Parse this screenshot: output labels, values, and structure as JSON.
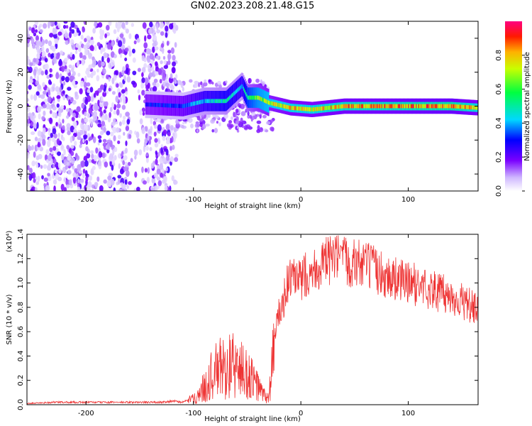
{
  "title": "GN02.2023.208.21.48.G15",
  "colors": {
    "snr_line": "#ee3333",
    "frame": "#000000"
  },
  "chart_data": [
    {
      "type": "heatmap",
      "title": "GN02.2023.208.21.48.G15",
      "xlabel": "Height of straight line (km)",
      "ylabel": "Frequency (Hz)",
      "xlim": [
        -255,
        165
      ],
      "ylim": [
        -50,
        50
      ],
      "xticks": [
        -200,
        -100,
        0,
        100
      ],
      "xtick_labels": [
        "-200",
        "-100",
        "0",
        "100"
      ],
      "yticks": [
        -40,
        -20,
        0,
        20,
        40
      ],
      "ytick_labels": [
        "-40",
        "-20",
        "0",
        "20",
        "40"
      ],
      "colorbar": {
        "label": "Normalized spectral amplitude",
        "range": [
          0,
          1
        ],
        "ticks": [
          0.0,
          0.2,
          0.4,
          0.6,
          0.8
        ],
        "tick_labels": [
          "0.0",
          "0.2",
          "0.4",
          "0.6",
          "0.8"
        ],
        "colormap": "rainbow"
      },
      "trace": [
        {
          "x": -145,
          "freq": 1,
          "amp": 0.3
        },
        {
          "x": -110,
          "freq": 0,
          "amp": 0.35
        },
        {
          "x": -90,
          "freq": 3,
          "amp": 0.45
        },
        {
          "x": -70,
          "freq": 3,
          "amp": 0.5
        },
        {
          "x": -55,
          "freq": 12,
          "amp": 0.45
        },
        {
          "x": -50,
          "freq": 5,
          "amp": 0.6
        },
        {
          "x": -40,
          "freq": 5,
          "amp": 0.7
        },
        {
          "x": -30,
          "freq": 2,
          "amp": 0.75
        },
        {
          "x": -10,
          "freq": -1,
          "amp": 0.8
        },
        {
          "x": 10,
          "freq": -2,
          "amp": 0.8
        },
        {
          "x": 40,
          "freq": 0,
          "amp": 0.85
        },
        {
          "x": 80,
          "freq": 0,
          "amp": 0.85
        },
        {
          "x": 140,
          "freq": 0,
          "amp": 0.9
        },
        {
          "x": 165,
          "freq": -1,
          "amp": 0.8
        }
      ]
    },
    {
      "type": "line",
      "xlabel": "Height of straight line (km)",
      "ylabel": "SNR (10 * v/v)",
      "y_multiplier": "(x10⁴)",
      "xlim": [
        -255,
        165
      ],
      "ylim": [
        0,
        1.4
      ],
      "xticks": [
        -200,
        -100,
        0,
        100
      ],
      "xtick_labels": [
        "-200",
        "-100",
        "0",
        "100"
      ],
      "yticks": [
        0.0,
        0.2,
        0.4,
        0.6,
        0.8,
        1.0,
        1.2,
        1.4
      ],
      "ytick_labels": [
        "0.0",
        "0.2",
        "0.4",
        "0.6",
        "0.8",
        "1.0",
        "1.2",
        "1.4"
      ],
      "series": [
        {
          "x": [
            -255,
            -230,
            -200,
            -180,
            -150,
            -130,
            -120,
            -110,
            -100,
            -95,
            -90,
            -85,
            -80,
            -75,
            -70,
            -65,
            -60,
            -55,
            -50,
            -45,
            -40,
            -35,
            -30,
            -27,
            -25,
            -22,
            -20,
            -17,
            -15,
            -12,
            -10,
            -5,
            0,
            5,
            10,
            20,
            30,
            40,
            50,
            60,
            70,
            80,
            90,
            100,
            110,
            120,
            130,
            140,
            150,
            160,
            165
          ],
          "y": [
            0.01,
            0.02,
            0.02,
            0.02,
            0.02,
            0.02,
            0.03,
            0.02,
            0.05,
            0.08,
            0.15,
            0.22,
            0.26,
            0.3,
            0.3,
            0.32,
            0.3,
            0.28,
            0.25,
            0.2,
            0.15,
            0.08,
            0.05,
            0.3,
            0.5,
            0.7,
            0.75,
            0.8,
            0.9,
            1.0,
            1.05,
            1.0,
            1.02,
            1.08,
            1.1,
            1.15,
            1.2,
            1.18,
            1.17,
            1.15,
            1.1,
            1.05,
            1.03,
            1.0,
            0.98,
            0.95,
            0.92,
            0.88,
            0.85,
            0.8,
            0.75
          ]
        }
      ]
    }
  ]
}
